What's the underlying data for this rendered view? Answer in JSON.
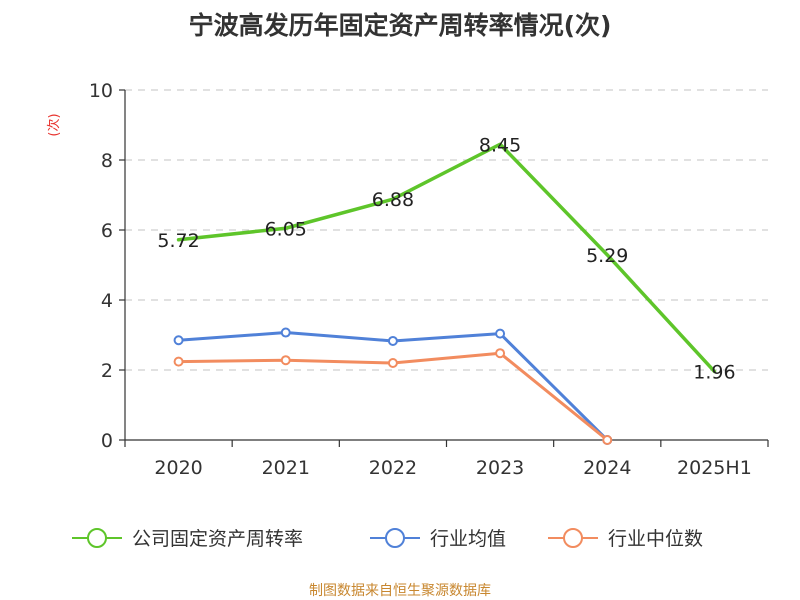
{
  "chart_data": {
    "type": "line",
    "title": "宁波高发历年固定资产周转率情况(次)",
    "ylabel": "(次)",
    "xlabel": "",
    "categories": [
      "2020",
      "2021",
      "2022",
      "2023",
      "2024",
      "2025H1"
    ],
    "ylim": [
      0,
      10
    ],
    "yticks": [
      0,
      2,
      4,
      6,
      8,
      10
    ],
    "grid": true,
    "legend_position": "bottom",
    "series": [
      {
        "name": "公司固定资产周转率",
        "color": "#5ec52a",
        "values": [
          5.72,
          6.05,
          6.88,
          8.45,
          5.29,
          1.96
        ],
        "labels": [
          "5.72",
          "6.05",
          "6.88",
          "8.45",
          "5.29",
          "1.96"
        ],
        "markers": false
      },
      {
        "name": "行业均值",
        "color": "#5081d8",
        "values": [
          2.85,
          3.07,
          2.83,
          3.04,
          0.0,
          null
        ],
        "labels": [],
        "markers": true
      },
      {
        "name": "行业中位数",
        "color": "#f28c5f",
        "values": [
          2.24,
          2.28,
          2.2,
          2.48,
          0.0,
          null
        ],
        "labels": [],
        "markers": true
      }
    ],
    "source": "制图数据来自恒生聚源数据库"
  }
}
